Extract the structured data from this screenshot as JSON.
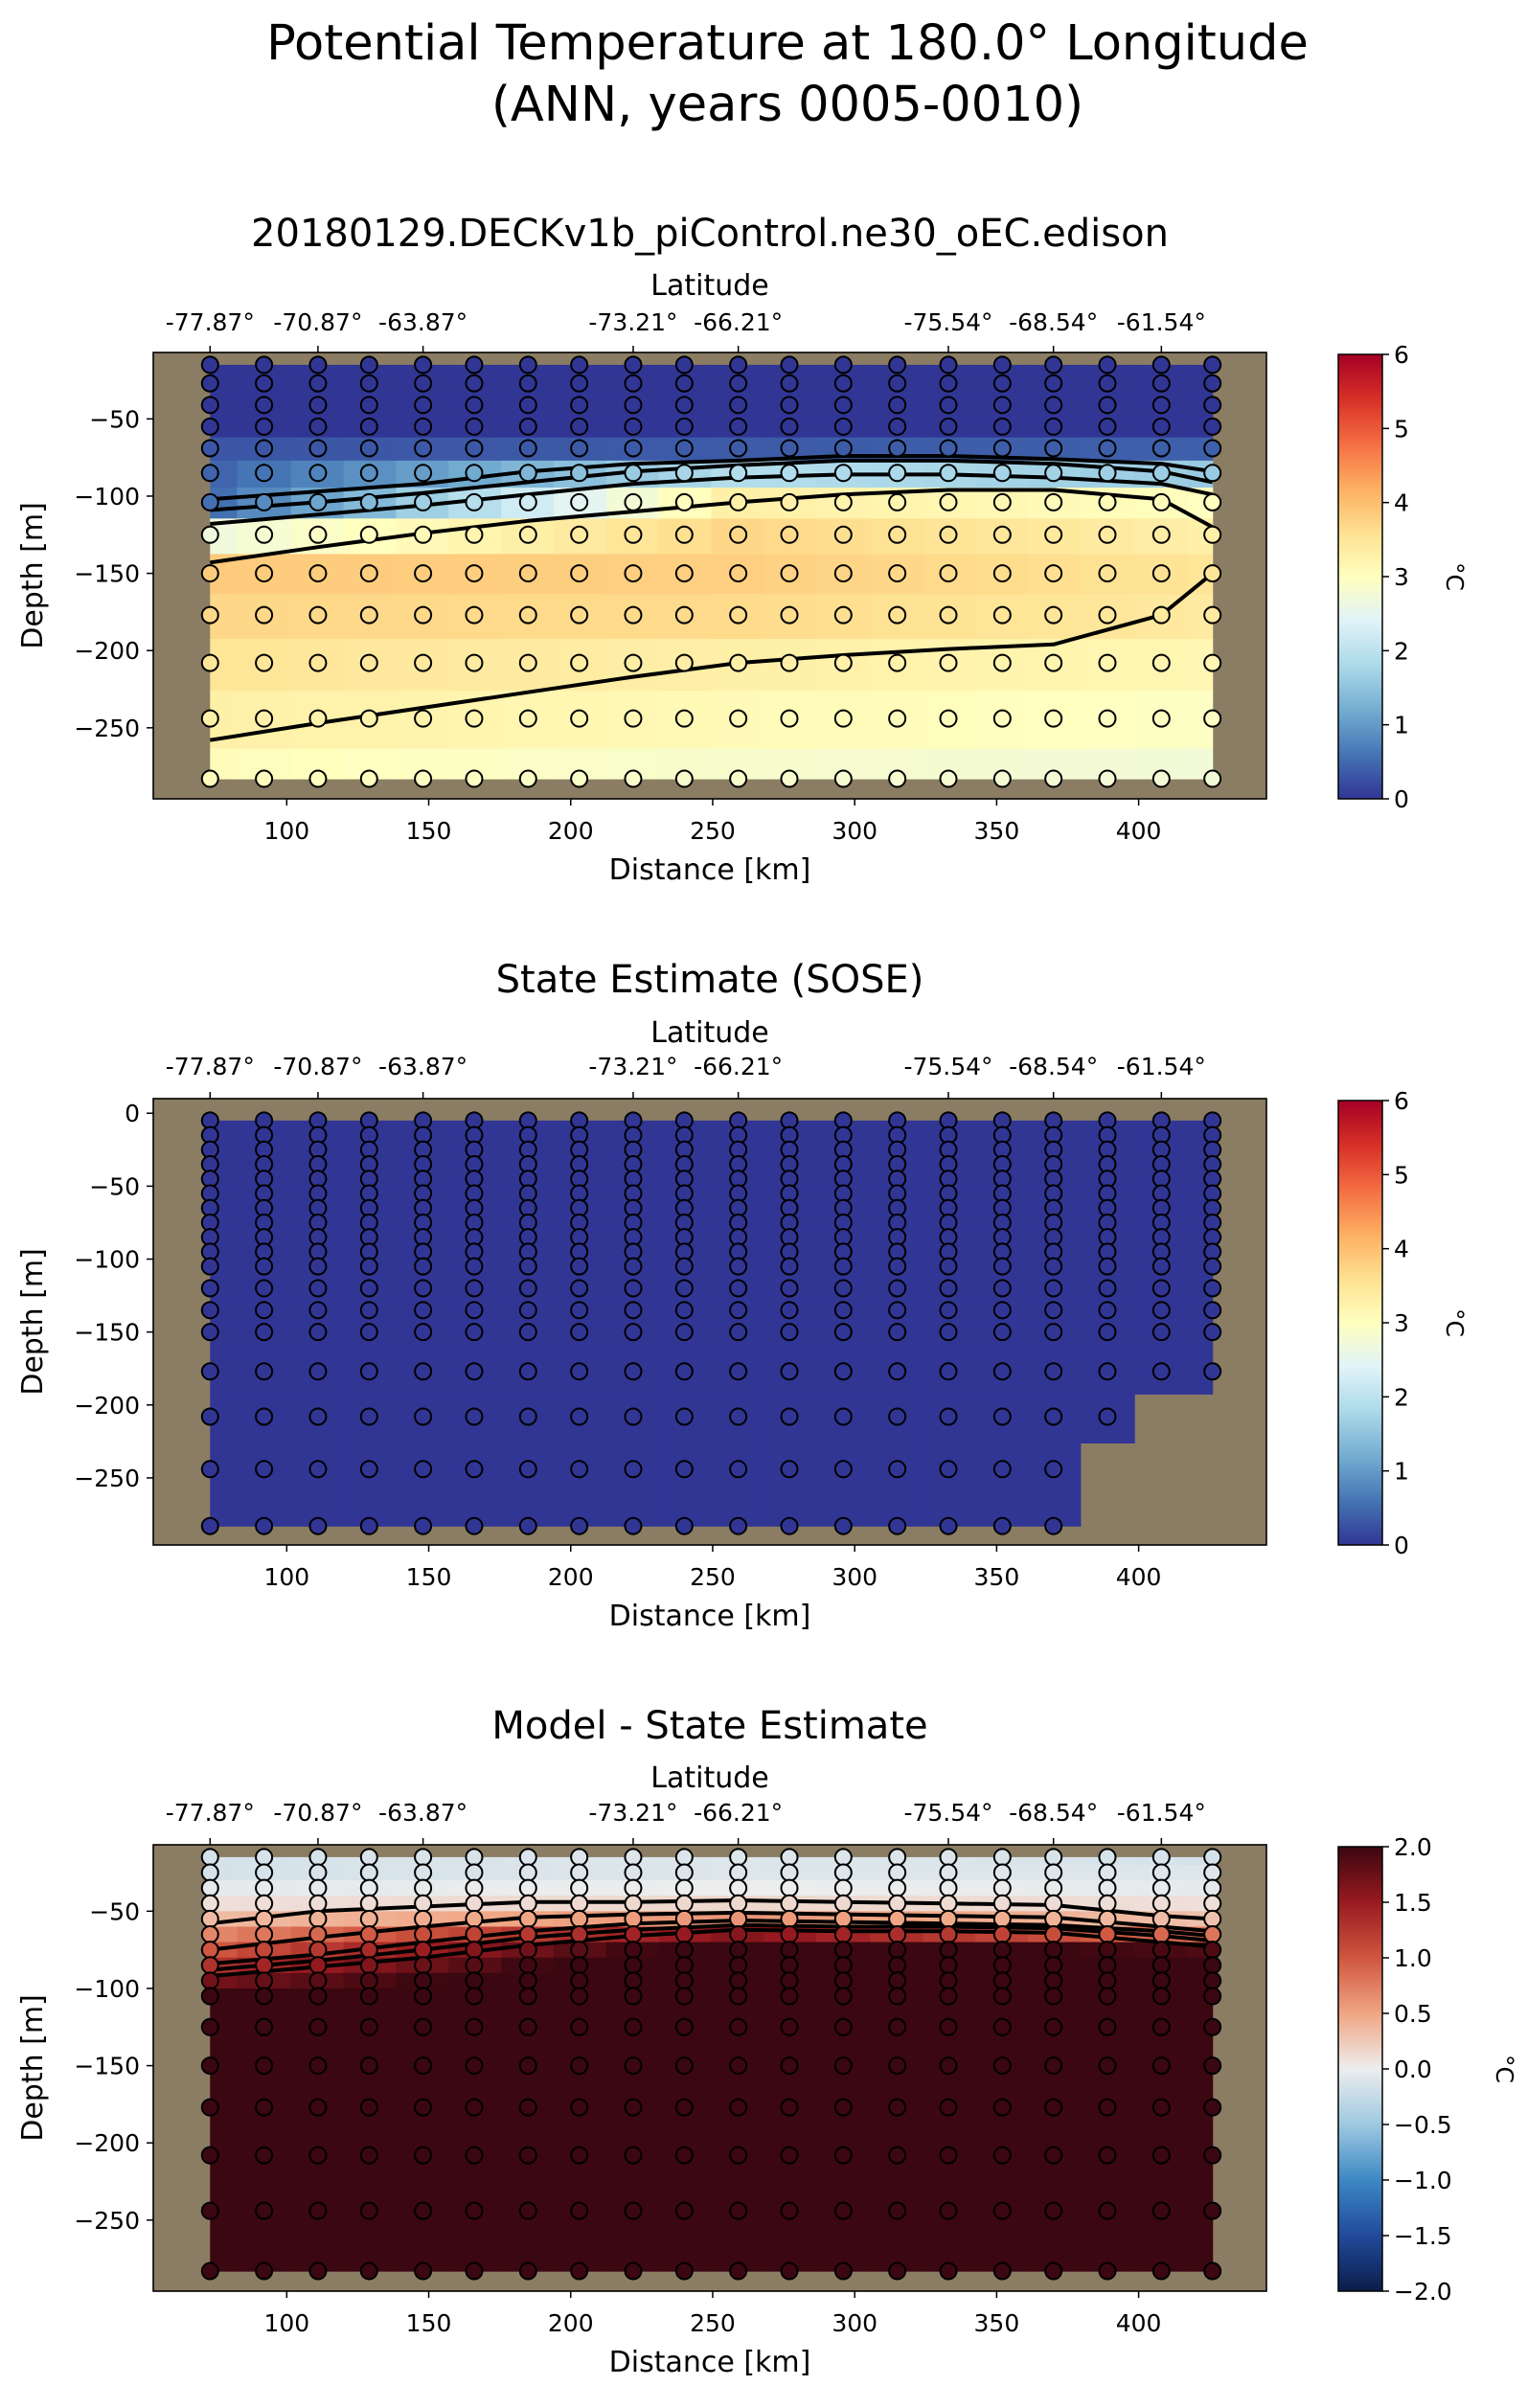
{
  "figure": {
    "title_line1": "Potential Temperature at 180.0° Longitude",
    "title_line2": "(ANN, years 0005-0010)",
    "colors": {
      "land": "#8b7d63",
      "station_edge": "#000000",
      "contour": "#000000"
    }
  },
  "chart_data": [
    {
      "type": "heatmap",
      "title": "20180129.DECKv1b_piControl.ne30_oEC.edison",
      "xlabel": "Distance [km]",
      "ylabel": "Depth [m]",
      "top_axis_label": "Latitude",
      "top_ticks": [
        {
          "x": 73,
          "label": "-77.87°"
        },
        {
          "x": 111,
          "label": "-70.87°"
        },
        {
          "x": 148,
          "label": "-63.87°"
        },
        {
          "x": 222,
          "label": "-73.21°"
        },
        {
          "x": 259,
          "label": "-66.21°"
        },
        {
          "x": 333,
          "label": "-75.54°"
        },
        {
          "x": 370,
          "label": "-68.54°"
        },
        {
          "x": 408,
          "label": "-61.54°"
        }
      ],
      "xlim": [
        53,
        445
      ],
      "ylim": [
        -296,
        -7
      ],
      "xticks": [
        100,
        150,
        200,
        250,
        300,
        350,
        400
      ],
      "yticks": [
        -50,
        -100,
        -150,
        -200,
        -250
      ],
      "colorbar": {
        "label": "°C",
        "min": 0,
        "max": 6,
        "ticks": [
          "0",
          "1",
          "2",
          "3",
          "4",
          "5",
          "6"
        ],
        "cmap": "RdYlBu_r"
      },
      "x_stations": [
        73,
        92,
        111,
        129,
        148,
        166,
        185,
        203,
        222,
        240,
        259,
        277,
        296,
        315,
        333,
        352,
        370,
        389,
        408,
        426
      ],
      "depths": [
        -15,
        -27,
        -41,
        -55,
        -69,
        -85,
        -104,
        -125,
        -150,
        -177,
        -208,
        -244,
        -283
      ],
      "mask_bottom": [
        -283,
        -283,
        -283,
        -283,
        -283,
        -283,
        -283,
        -283,
        -283,
        -283,
        -283,
        -283,
        -283,
        -283,
        -283,
        -283,
        -283,
        -283,
        -283,
        -283
      ],
      "profile": {
        "x": [
          73,
          259,
          426
        ],
        "values": [
          [
            0,
            0,
            0
          ],
          [
            0,
            0,
            0
          ],
          [
            0,
            0,
            0
          ],
          [
            0,
            0,
            0
          ],
          [
            0.3,
            0.35,
            0.4
          ],
          [
            0.45,
            1.9,
            1.6
          ],
          [
            0.55,
            3.3,
            3.0
          ],
          [
            2.7,
            3.7,
            3.3
          ],
          [
            3.85,
            3.8,
            3.5
          ],
          [
            3.7,
            3.65,
            3.4
          ],
          [
            3.5,
            3.3,
            3.15
          ],
          [
            3.3,
            3.1,
            2.95
          ],
          [
            3.05,
            2.85,
            2.75
          ]
        ]
      },
      "contours": [
        [
          [
            73,
            -102
          ],
          [
            111,
            -97
          ],
          [
            148,
            -92
          ],
          [
            185,
            -84
          ],
          [
            222,
            -79
          ],
          [
            259,
            -77
          ],
          [
            296,
            -74
          ],
          [
            333,
            -74
          ],
          [
            370,
            -76
          ],
          [
            408,
            -79
          ],
          [
            426,
            -84
          ]
        ],
        [
          [
            73,
            -109
          ],
          [
            111,
            -104
          ],
          [
            148,
            -98
          ],
          [
            185,
            -91
          ],
          [
            222,
            -84
          ],
          [
            259,
            -80
          ],
          [
            296,
            -77
          ],
          [
            333,
            -77
          ],
          [
            370,
            -79
          ],
          [
            408,
            -84
          ],
          [
            426,
            -91
          ]
        ],
        [
          [
            73,
            -118
          ],
          [
            111,
            -112
          ],
          [
            148,
            -106
          ],
          [
            185,
            -99
          ],
          [
            222,
            -92
          ],
          [
            259,
            -88
          ],
          [
            296,
            -86
          ],
          [
            333,
            -86
          ],
          [
            370,
            -88
          ],
          [
            408,
            -92
          ],
          [
            426,
            -99
          ]
        ],
        [
          [
            73,
            -143
          ],
          [
            111,
            -133
          ],
          [
            148,
            -124
          ],
          [
            185,
            -116
          ],
          [
            222,
            -110
          ],
          [
            259,
            -104
          ],
          [
            296,
            -99
          ],
          [
            333,
            -96
          ],
          [
            370,
            -96
          ],
          [
            408,
            -102
          ],
          [
            426,
            -120
          ]
        ],
        [
          [
            73,
            -258
          ],
          [
            111,
            -247
          ],
          [
            148,
            -237
          ],
          [
            185,
            -227
          ],
          [
            222,
            -217
          ],
          [
            259,
            -208
          ],
          [
            296,
            -203
          ],
          [
            333,
            -199
          ],
          [
            370,
            -196
          ],
          [
            408,
            -177
          ],
          [
            426,
            -150
          ]
        ]
      ]
    },
    {
      "type": "heatmap",
      "title": "State Estimate (SOSE)",
      "xlabel": "Distance [km]",
      "ylabel": "Depth [m]",
      "top_axis_label": "Latitude",
      "top_ticks": [
        {
          "x": 73,
          "label": "-77.87°"
        },
        {
          "x": 111,
          "label": "-70.87°"
        },
        {
          "x": 148,
          "label": "-63.87°"
        },
        {
          "x": 222,
          "label": "-73.21°"
        },
        {
          "x": 259,
          "label": "-66.21°"
        },
        {
          "x": 333,
          "label": "-75.54°"
        },
        {
          "x": 370,
          "label": "-68.54°"
        },
        {
          "x": 408,
          "label": "-61.54°"
        }
      ],
      "xlim": [
        53,
        445
      ],
      "ylim": [
        -296,
        10
      ],
      "xticks": [
        100,
        150,
        200,
        250,
        300,
        350,
        400
      ],
      "yticks": [
        0,
        -50,
        -100,
        -150,
        -200,
        -250
      ],
      "colorbar": {
        "label": "°C",
        "min": 0,
        "max": 6,
        "ticks": [
          "0",
          "1",
          "2",
          "3",
          "4",
          "5",
          "6"
        ],
        "cmap": "RdYlBu_r"
      },
      "x_stations": [
        73,
        92,
        111,
        129,
        148,
        166,
        185,
        203,
        222,
        240,
        259,
        277,
        296,
        315,
        333,
        352,
        370,
        389,
        408,
        426
      ],
      "depths": [
        -5,
        -15,
        -25,
        -35,
        -45,
        -55,
        -65,
        -75,
        -85,
        -95,
        -105,
        -120,
        -135,
        -150,
        -177,
        -208,
        -244,
        -283
      ],
      "mask_bottom": [
        -283,
        -283,
        -283,
        -283,
        -283,
        -283,
        -283,
        -283,
        -283,
        -283,
        -283,
        -283,
        -283,
        -283,
        -283,
        -283,
        -283,
        -208,
        -177,
        -177
      ],
      "profile": {
        "x": [
          73,
          426
        ],
        "values": [
          [
            0,
            0
          ],
          [
            0,
            0
          ],
          [
            0,
            0
          ],
          [
            0,
            0
          ],
          [
            0,
            0
          ],
          [
            0,
            0
          ],
          [
            0,
            0
          ],
          [
            0,
            0
          ],
          [
            0,
            0
          ],
          [
            0,
            0
          ],
          [
            0,
            0
          ],
          [
            0,
            0
          ],
          [
            0,
            0
          ],
          [
            0,
            0
          ],
          [
            0,
            0
          ],
          [
            0,
            0
          ],
          [
            0,
            0
          ],
          [
            0,
            0
          ]
        ]
      },
      "contours": []
    },
    {
      "type": "heatmap",
      "title": "Model - State Estimate",
      "xlabel": "Distance [km]",
      "ylabel": "Depth [m]",
      "top_axis_label": "Latitude",
      "top_ticks": [
        {
          "x": 73,
          "label": "-77.87°"
        },
        {
          "x": 111,
          "label": "-70.87°"
        },
        {
          "x": 148,
          "label": "-63.87°"
        },
        {
          "x": 222,
          "label": "-73.21°"
        },
        {
          "x": 259,
          "label": "-66.21°"
        },
        {
          "x": 333,
          "label": "-75.54°"
        },
        {
          "x": 370,
          "label": "-68.54°"
        },
        {
          "x": 408,
          "label": "-61.54°"
        }
      ],
      "xlim": [
        53,
        445
      ],
      "ylim": [
        -296,
        -7
      ],
      "xticks": [
        100,
        150,
        200,
        250,
        300,
        350,
        400
      ],
      "yticks": [
        -50,
        -100,
        -150,
        -200,
        -250
      ],
      "colorbar": {
        "label": "°C",
        "min": -2,
        "max": 2,
        "ticks": [
          "−2.0",
          "−1.5",
          "−1.0",
          "−0.5",
          "0.0",
          "0.5",
          "1.0",
          "1.5",
          "2.0"
        ],
        "cmap": "RdBu_r"
      },
      "x_stations": [
        73,
        92,
        111,
        129,
        148,
        166,
        185,
        203,
        222,
        240,
        259,
        277,
        296,
        315,
        333,
        352,
        370,
        389,
        408,
        426
      ],
      "depths": [
        -15,
        -25,
        -35,
        -45,
        -55,
        -65,
        -75,
        -85,
        -95,
        -105,
        -125,
        -150,
        -177,
        -208,
        -244,
        -283
      ],
      "mask_bottom": [
        -283,
        -283,
        -283,
        -283,
        -283,
        -283,
        -283,
        -283,
        -283,
        -283,
        -283,
        -283,
        -283,
        -283,
        -283,
        -283,
        -283,
        -283,
        -283,
        -283
      ],
      "profile": {
        "x": [
          73,
          259,
          426
        ],
        "values": [
          [
            -0.15,
            -0.1,
            -0.15
          ],
          [
            -0.15,
            -0.1,
            -0.1
          ],
          [
            -0.05,
            0.0,
            -0.05
          ],
          [
            0.1,
            0.15,
            0.1
          ],
          [
            0.35,
            0.6,
            0.3
          ],
          [
            0.7,
            1.6,
            0.8
          ],
          [
            1.0,
            2.2,
            1.9
          ],
          [
            1.3,
            2.4,
            2.4
          ],
          [
            1.7,
            2.4,
            2.4
          ],
          [
            2.4,
            2.4,
            2.4
          ],
          [
            2.4,
            2.4,
            2.4
          ],
          [
            2.4,
            2.4,
            2.4
          ],
          [
            2.4,
            2.4,
            2.4
          ],
          [
            2.4,
            2.4,
            2.4
          ],
          [
            2.4,
            2.4,
            2.4
          ],
          [
            2.4,
            2.4,
            2.4
          ]
        ]
      },
      "contours": [
        [
          [
            73,
            -58
          ],
          [
            111,
            -50
          ],
          [
            148,
            -47
          ],
          [
            185,
            -44
          ],
          [
            222,
            -44
          ],
          [
            259,
            -43
          ],
          [
            296,
            -44
          ],
          [
            333,
            -45
          ],
          [
            370,
            -46
          ],
          [
            408,
            -53
          ],
          [
            426,
            -55
          ]
        ],
        [
          [
            73,
            -75
          ],
          [
            111,
            -67
          ],
          [
            148,
            -60
          ],
          [
            185,
            -54
          ],
          [
            222,
            -52
          ],
          [
            259,
            -51
          ],
          [
            296,
            -52
          ],
          [
            333,
            -53
          ],
          [
            370,
            -54
          ],
          [
            408,
            -60
          ],
          [
            426,
            -63
          ]
        ],
        [
          [
            73,
            -84
          ],
          [
            111,
            -78
          ],
          [
            148,
            -70
          ],
          [
            185,
            -63
          ],
          [
            222,
            -58
          ],
          [
            259,
            -56
          ],
          [
            296,
            -57
          ],
          [
            333,
            -58
          ],
          [
            370,
            -59
          ],
          [
            408,
            -63
          ],
          [
            426,
            -66
          ]
        ],
        [
          [
            73,
            -88
          ],
          [
            111,
            -82
          ],
          [
            148,
            -75
          ],
          [
            185,
            -67
          ],
          [
            222,
            -62
          ],
          [
            259,
            -59
          ],
          [
            296,
            -60
          ],
          [
            333,
            -60
          ],
          [
            370,
            -61
          ],
          [
            408,
            -66
          ],
          [
            426,
            -69
          ]
        ],
        [
          [
            73,
            -92
          ],
          [
            111,
            -86
          ],
          [
            148,
            -80
          ],
          [
            185,
            -72
          ],
          [
            222,
            -66
          ],
          [
            259,
            -62
          ],
          [
            296,
            -63
          ],
          [
            333,
            -63
          ],
          [
            370,
            -64
          ],
          [
            408,
            -70
          ],
          [
            426,
            -73
          ]
        ]
      ]
    }
  ]
}
